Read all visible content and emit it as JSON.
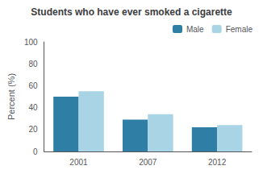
{
  "chart_data": {
    "type": "bar",
    "title": "Students who have ever smoked a cigarette",
    "categories": [
      "2001",
      "2007",
      "2012"
    ],
    "series": [
      {
        "name": "Male",
        "color": "#2E7EA6",
        "values": [
          50,
          29,
          22
        ]
      },
      {
        "name": "Female",
        "color": "#A8D4E6",
        "values": [
          55,
          34,
          24
        ]
      }
    ],
    "ylabel": "Percent (%)",
    "ylim": [
      0,
      100
    ],
    "yticks": [
      0,
      20,
      40,
      60,
      80,
      100
    ],
    "grid": false,
    "legend": "upper right"
  }
}
